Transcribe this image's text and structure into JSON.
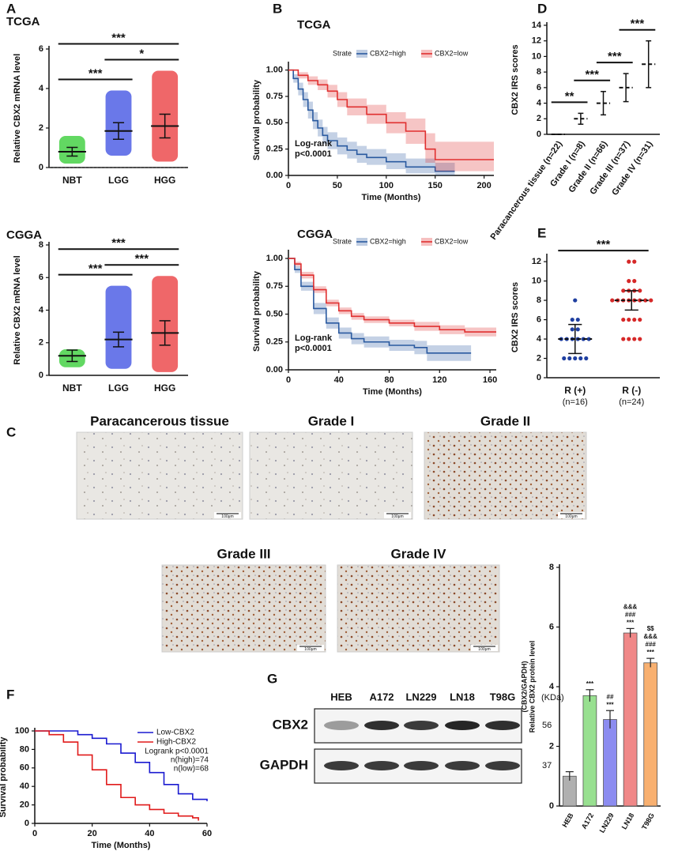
{
  "panel_labels": [
    "A",
    "B",
    "C",
    "D",
    "E",
    "F",
    "G"
  ],
  "chart_data": [
    {
      "type": "dot_plot",
      "title": "TCGA",
      "ylabel": "Relative CBX2 mRNA level",
      "categories": [
        "NBT",
        "LGG",
        "HGG"
      ],
      "colors": [
        "#1fc81f",
        "#2b3fe0",
        "#e8262a"
      ],
      "values": [
        0.8,
        1.85,
        2.1
      ],
      "error": [
        0.22,
        0.42,
        0.6
      ],
      "min": [
        0.2,
        0.6,
        0.3
      ],
      "max": [
        1.6,
        3.9,
        4.9
      ],
      "ylim": [
        0,
        6
      ],
      "yticks": [
        0,
        2,
        4,
        6
      ],
      "reference_line": 0,
      "mean_line_style": "solid",
      "comparisons": [
        {
          "label": "***",
          "groups": [
            "NBT",
            "HGG"
          ]
        },
        {
          "label": "***",
          "groups": [
            "NBT",
            "LGG"
          ]
        },
        {
          "label": "*",
          "groups": [
            "LGG",
            "HGG"
          ]
        }
      ]
    },
    {
      "type": "dot_plot",
      "title": "CGGA",
      "ylabel": "Relative CBX2 mRNA level",
      "categories": [
        "NBT",
        "LGG",
        "HGG"
      ],
      "colors": [
        "#1fc81f",
        "#2b3fe0",
        "#e8262a"
      ],
      "values": [
        1.2,
        2.2,
        2.6
      ],
      "error": [
        0.35,
        0.45,
        0.75
      ],
      "min": [
        0.5,
        0.4,
        0.2
      ],
      "max": [
        1.6,
        5.5,
        6.1
      ],
      "ylim": [
        0,
        8
      ],
      "yticks": [
        0,
        2,
        4,
        6,
        8
      ],
      "mean_line_style": "solid",
      "comparisons": [
        {
          "label": "***",
          "groups": [
            "NBT",
            "HGG"
          ]
        },
        {
          "label": "***",
          "groups": [
            "NBT",
            "LGG"
          ]
        },
        {
          "label": "***",
          "groups": [
            "LGG",
            "HGG"
          ]
        }
      ]
    },
    {
      "type": "survival",
      "title": "TCGA",
      "xlabel": "Time (Months)",
      "ylabel": "Survival probability",
      "legend_title": "Strate",
      "legend": "top",
      "annotations": [
        "Log-rank",
        "p<0.0001"
      ],
      "xlim": [
        0,
        210
      ],
      "xticks": [
        0,
        50,
        100,
        150,
        200
      ],
      "ylim": [
        0,
        1.05
      ],
      "yticks": [
        {
          "value": 0,
          "label": "0.00"
        },
        0.25,
        {
          "value": 0.5,
          "label": "0.50"
        },
        0.75,
        {
          "value": 1,
          "label": "1.00"
        }
      ],
      "series": [
        {
          "name": "CBX2=high",
          "color": "#2a5aa0",
          "x": [
            0,
            5,
            10,
            15,
            20,
            25,
            30,
            35,
            40,
            50,
            60,
            70,
            80,
            100,
            120,
            140,
            150,
            170
          ],
          "values": [
            1,
            0.92,
            0.82,
            0.72,
            0.62,
            0.52,
            0.45,
            0.38,
            0.33,
            0.28,
            0.24,
            0.2,
            0.17,
            0.13,
            0.08,
            0.08,
            0.04,
            0.04
          ],
          "lower": [
            1,
            0.88,
            0.76,
            0.65,
            0.54,
            0.44,
            0.37,
            0.3,
            0.25,
            0.2,
            0.16,
            0.12,
            0.1,
            0.06,
            0.02,
            0.02,
            0,
            0
          ],
          "upper": [
            1,
            0.96,
            0.88,
            0.79,
            0.7,
            0.6,
            0.53,
            0.46,
            0.41,
            0.36,
            0.32,
            0.28,
            0.25,
            0.21,
            0.16,
            0.16,
            0.12,
            0.12
          ]
        },
        {
          "name": "CBX2=low",
          "color": "#e03030",
          "x": [
            0,
            10,
            20,
            30,
            40,
            50,
            60,
            80,
            100,
            120,
            140,
            150,
            170,
            210
          ],
          "values": [
            1,
            0.95,
            0.9,
            0.86,
            0.8,
            0.72,
            0.65,
            0.58,
            0.5,
            0.42,
            0.25,
            0.15,
            0.15,
            0.15
          ],
          "lower": [
            1,
            0.92,
            0.86,
            0.81,
            0.74,
            0.65,
            0.57,
            0.49,
            0.4,
            0.3,
            0.12,
            0.04,
            0.04,
            0.04
          ],
          "upper": [
            1,
            0.98,
            0.94,
            0.91,
            0.86,
            0.79,
            0.73,
            0.67,
            0.6,
            0.54,
            0.4,
            0.32,
            0.32,
            0.32
          ]
        }
      ]
    },
    {
      "type": "survival",
      "title": "CGGA",
      "xlabel": "Time (Months)",
      "ylabel": "Survival probability",
      "legend_title": "Strate",
      "legend": "top",
      "annotations": [
        "Log-rank",
        "p<0.0001"
      ],
      "xlim": [
        0,
        165
      ],
      "xticks": [
        0,
        40,
        80,
        120,
        160
      ],
      "ylim": [
        0,
        1.05
      ],
      "yticks": [
        {
          "value": 0,
          "label": "0.00"
        },
        0.25,
        {
          "value": 0.5,
          "label": "0.50"
        },
        0.75,
        {
          "value": 1,
          "label": "1.00"
        }
      ],
      "series": [
        {
          "name": "CBX2=high",
          "color": "#2a5aa0",
          "x": [
            0,
            5,
            10,
            20,
            30,
            40,
            50,
            60,
            80,
            100,
            110,
            120,
            145
          ],
          "values": [
            1,
            0.9,
            0.75,
            0.55,
            0.42,
            0.33,
            0.28,
            0.25,
            0.22,
            0.2,
            0.15,
            0.15,
            0.15
          ],
          "lower": [
            1,
            0.87,
            0.71,
            0.5,
            0.37,
            0.28,
            0.23,
            0.2,
            0.17,
            0.14,
            0.08,
            0.08,
            0.08
          ],
          "upper": [
            1,
            0.93,
            0.79,
            0.6,
            0.47,
            0.38,
            0.33,
            0.3,
            0.27,
            0.26,
            0.22,
            0.22,
            0.22
          ]
        },
        {
          "name": "CBX2=low",
          "color": "#e03030",
          "x": [
            0,
            5,
            10,
            20,
            30,
            40,
            50,
            60,
            80,
            100,
            120,
            140,
            165
          ],
          "values": [
            1,
            0.95,
            0.85,
            0.72,
            0.6,
            0.53,
            0.48,
            0.45,
            0.42,
            0.39,
            0.36,
            0.34,
            0.34
          ],
          "lower": [
            1,
            0.93,
            0.82,
            0.69,
            0.57,
            0.5,
            0.45,
            0.42,
            0.39,
            0.35,
            0.32,
            0.3,
            0.3
          ],
          "upper": [
            1,
            0.97,
            0.88,
            0.75,
            0.63,
            0.56,
            0.51,
            0.48,
            0.45,
            0.43,
            0.4,
            0.38,
            0.38
          ]
        }
      ]
    },
    {
      "type": "dot_plot",
      "ylabel": "CBX2 IRS scores",
      "categories": [
        "Paracancerous tissue (n=22)",
        "Grade I  (n=8)",
        "Grade II (n=66)",
        "Grade III (n=37)",
        "Grade IV (n=31)"
      ],
      "colors": [
        "#c8a040",
        "#2e8b3a",
        "#2e8b3a",
        "#2b3fe0",
        "#e8262a"
      ],
      "values": [
        0,
        2,
        4,
        6,
        9
      ],
      "error": [
        0,
        0.7,
        1.5,
        1.8,
        3
      ],
      "ylim": [
        0,
        14
      ],
      "yticks": [
        0,
        2,
        4,
        6,
        8,
        10,
        12,
        14
      ],
      "mean_line_style": "dashed",
      "comparisons": [
        {
          "label": "**",
          "groups": [
            "Paracancerous tissue (n=22)",
            "Grade I  (n=8)"
          ]
        },
        {
          "label": "***",
          "groups": [
            "Grade I  (n=8)",
            "Grade II (n=66)"
          ]
        },
        {
          "label": "***",
          "groups": [
            "Grade II (n=66)",
            "Grade III (n=37)"
          ]
        },
        {
          "label": "***",
          "groups": [
            "Grade III (n=37)",
            "Grade IV (n=31)"
          ]
        }
      ]
    },
    {
      "type": "dot_plot",
      "ylabel": "CBX2 IRS scores",
      "categories": [
        "R (+)",
        "R (-)"
      ],
      "category_notes": [
        "(n=16)",
        "(n=24)"
      ],
      "colors": [
        "#1f3fa0",
        "#d62828"
      ],
      "values": [
        4,
        8
      ],
      "error": [
        1.5,
        1
      ],
      "points": [
        [
          8,
          6,
          6,
          5,
          5,
          4,
          4,
          4,
          4,
          4,
          4,
          2,
          2,
          2,
          2,
          2
        ],
        [
          12,
          12,
          10,
          10,
          9,
          9,
          9,
          9,
          8,
          8,
          8,
          8,
          8,
          8,
          8,
          8,
          6,
          6,
          6,
          6,
          4,
          4,
          4,
          4
        ]
      ],
      "ylim": [
        0,
        12.5
      ],
      "yticks": [
        0,
        2,
        4,
        6,
        8,
        10,
        12
      ],
      "mean_line_style": "dashed",
      "comparisons": [
        {
          "label": "***",
          "groups": [
            "R (+)",
            "R (-)"
          ]
        }
      ]
    },
    {
      "type": "survival",
      "xlabel": "Time (Months)",
      "ylabel": "Survival probability",
      "legend": "top-right",
      "annotations": [
        "Logrank p<0.0001",
        "n(high)=74",
        "n(low)=68"
      ],
      "xlim": [
        0,
        60
      ],
      "xticks": [
        0,
        20,
        40,
        60
      ],
      "ylim": [
        0,
        100
      ],
      "yticks": [
        0,
        20,
        40,
        60,
        80,
        100
      ],
      "series": [
        {
          "name": "Low-CBX2",
          "color": "#1a1ad0",
          "x": [
            0,
            10,
            15,
            20,
            25,
            30,
            35,
            40,
            45,
            50,
            55,
            60
          ],
          "values": [
            100,
            100,
            96,
            92,
            86,
            76,
            66,
            55,
            42,
            32,
            26,
            24
          ]
        },
        {
          "name": "High-CBX2",
          "color": "#e01a1a",
          "x": [
            0,
            5,
            10,
            15,
            20,
            25,
            30,
            35,
            40,
            45,
            50,
            55,
            57
          ],
          "values": [
            100,
            96,
            88,
            74,
            58,
            42,
            28,
            20,
            15,
            11,
            8,
            6,
            3
          ]
        }
      ]
    },
    {
      "type": "bar",
      "ylabel": [
        "Relative CBX2 protein level",
        "(CBX2/GAPDH)"
      ],
      "categories": [
        "HEB",
        "A172",
        "LN229",
        "LN18",
        "T98G"
      ],
      "values": [
        1,
        3.7,
        2.9,
        5.8,
        4.8
      ],
      "error": [
        0.15,
        0.2,
        0.3,
        0.15,
        0.15
      ],
      "colors": [
        "#b0b0b0",
        "#98e090",
        "#8c8cf0",
        "#f08888",
        "#f8b070"
      ],
      "annotations": [
        [],
        [
          "***"
        ],
        [
          "##",
          "***"
        ],
        [
          "&&&",
          "###",
          "***"
        ],
        [
          "$$",
          "&&&",
          "###",
          "***"
        ]
      ],
      "ylim": [
        0,
        8
      ],
      "yticks": [
        0,
        2,
        4,
        6,
        8
      ]
    }
  ],
  "micrographs": {
    "titles": [
      "Paracancerous tissue",
      "Grade I",
      "Grade II",
      "Grade III",
      "Grade IV"
    ],
    "scale_bar": "100μm"
  },
  "blot": {
    "lanes": [
      "HEB",
      "A172",
      "LN229",
      "LN18",
      "T98G"
    ],
    "unit": "(KDa)",
    "rows": [
      {
        "name": "CBX2",
        "kda": 56
      },
      {
        "name": "GAPDH",
        "kda": 37
      }
    ]
  }
}
